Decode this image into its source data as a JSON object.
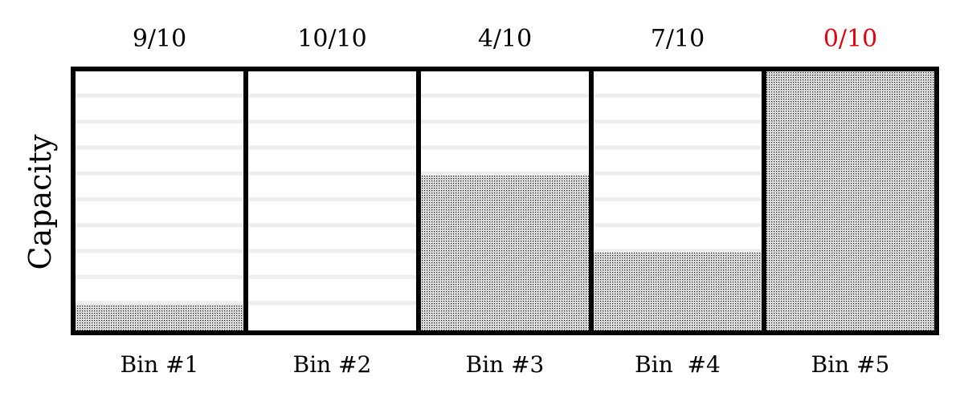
{
  "diagram": {
    "axis_label": "Capacity",
    "capacity_per_bin": 10,
    "bins": [
      {
        "label": "Bin #1",
        "capacity_text": "9/10",
        "remaining": 9,
        "used_fraction": 0.1
      },
      {
        "label": "Bin #2",
        "capacity_text": "10/10",
        "remaining": 10,
        "used_fraction": 0.0
      },
      {
        "label": "Bin #3",
        "capacity_text": "4/10",
        "remaining": 4,
        "used_fraction": 0.6
      },
      {
        "label": "Bin  #4",
        "capacity_text": "7/10",
        "remaining": 7,
        "used_fraction": 0.3
      },
      {
        "label": "Bin #5",
        "capacity_text": "0/10",
        "remaining": 0,
        "used_fraction": 1.0,
        "highlight": true
      }
    ],
    "colors": {
      "border": "#000000",
      "fill_dot": "#000000",
      "fill_background": "#ffffff",
      "guide_line": "#eeeeee",
      "full_warning": "#e8000b",
      "text": "#000000"
    }
  }
}
